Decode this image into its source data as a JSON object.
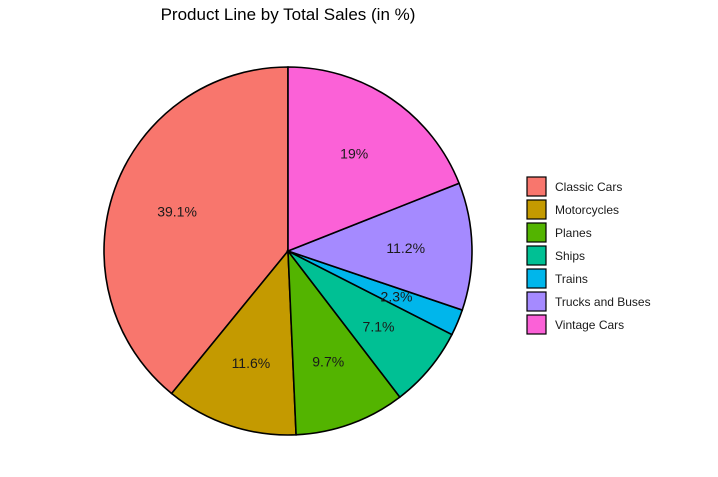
{
  "chart_data": {
    "type": "pie",
    "title": "Product Line by Total Sales (in %)",
    "slices": [
      {
        "name": "Classic Cars",
        "value": 39.1,
        "label": "39.1%",
        "color": "#F8766D"
      },
      {
        "name": "Motorcycles",
        "value": 11.6,
        "label": "11.6%",
        "color": "#C49A00"
      },
      {
        "name": "Planes",
        "value": 9.7,
        "label": "9.7%",
        "color": "#53B400"
      },
      {
        "name": "Ships",
        "value": 7.1,
        "label": "7.1%",
        "color": "#00C094"
      },
      {
        "name": "Trains",
        "value": 2.3,
        "label": "2.3%",
        "color": "#00B6EB"
      },
      {
        "name": "Trucks and Buses",
        "value": 11.2,
        "label": "11.2%",
        "color": "#A58AFF"
      },
      {
        "name": "Vintage Cars",
        "value": 19.0,
        "label": "19%",
        "color": "#FB61D7"
      }
    ],
    "legend": {
      "position": "right",
      "entries": [
        "Classic Cars",
        "Motorcycles",
        "Planes",
        "Ships",
        "Trains",
        "Trucks and Buses",
        "Vintage Cars"
      ]
    },
    "direction": "counterclockwise",
    "start": "top"
  }
}
